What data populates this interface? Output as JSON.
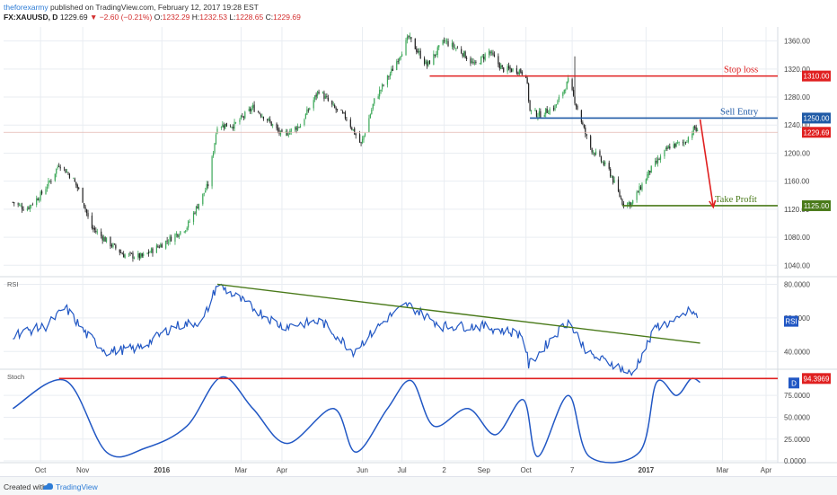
{
  "header": {
    "author": "theforexarmy",
    "published": " published on TradingView.com, February 12, 2017 19:28 EST",
    "symbol": "FX:XAUUSD, D",
    "last": "1229.69",
    "change": "▼ −2.60 (−0.21%)",
    "o_label": "O:",
    "o": "1232.29",
    "h_label": "H:",
    "h": "1232.53",
    "l_label": "L:",
    "l": "1228.65",
    "c_label": "C:",
    "c": "1229.69"
  },
  "footer": {
    "created": "Created with",
    "brand": "TradingView",
    "icon": "tradingview-logo-icon"
  },
  "colors": {
    "up": "#3aa757",
    "down": "#222222",
    "red": "#e02020",
    "blue": "#1f5aa6",
    "green": "#4a7a1a",
    "rsi": "#2157c4",
    "grid": "#e9edf2",
    "current": "#e3b7b0"
  },
  "chart_data": [
    {
      "type": "candlestick",
      "price_axis_ticks": [
        1040,
        1080,
        1120,
        1160,
        1200,
        1240,
        1280,
        1320,
        1360
      ],
      "ylim": [
        1025,
        1380
      ],
      "time_labels": [
        "Oct",
        "Nov",
        "2016",
        "Mar",
        "Apr",
        "Jun",
        "Jul",
        "2",
        "Sep",
        "Oct",
        "7",
        "2017",
        "Mar",
        "Apr"
      ],
      "bold_time_labels": [
        "2016",
        "2017"
      ],
      "current_price": {
        "value": 1229.69,
        "label": "1229.69"
      },
      "trade_levels": [
        {
          "name": "Stop loss",
          "value": 1310,
          "label": "1310.00",
          "color": "#e02020"
        },
        {
          "name": "Sell Entry",
          "value": 1250,
          "label": "1250.00",
          "color": "#1f5aa6"
        },
        {
          "name": "Take Profit",
          "value": 1125,
          "label": "1125.00",
          "color": "#4a7a1a"
        }
      ],
      "close_path": [
        [
          "2015-09-10",
          1130
        ],
        [
          "2015-09-20",
          1120
        ],
        [
          "2015-10-01",
          1140
        ],
        [
          "2015-10-10",
          1165
        ],
        [
          "2015-10-15",
          1185
        ],
        [
          "2015-10-25",
          1165
        ],
        [
          "2015-11-01",
          1140
        ],
        [
          "2015-11-08",
          1095
        ],
        [
          "2015-11-20",
          1075
        ],
        [
          "2015-12-03",
          1055
        ],
        [
          "2015-12-17",
          1052
        ],
        [
          "2016-01-05",
          1075
        ],
        [
          "2016-01-20",
          1095
        ],
        [
          "2016-02-05",
          1155
        ],
        [
          "2016-02-12",
          1240
        ],
        [
          "2016-02-25",
          1240
        ],
        [
          "2016-03-10",
          1265
        ],
        [
          "2016-03-20",
          1250
        ],
        [
          "2016-04-01",
          1225
        ],
        [
          "2016-04-15",
          1240
        ],
        [
          "2016-04-29",
          1290
        ],
        [
          "2016-05-10",
          1265
        ],
        [
          "2016-05-20",
          1250
        ],
        [
          "2016-05-31",
          1212
        ],
        [
          "2016-06-10",
          1275
        ],
        [
          "2016-06-24",
          1320
        ],
        [
          "2016-07-06",
          1365
        ],
        [
          "2016-07-20",
          1325
        ],
        [
          "2016-08-02",
          1360
        ],
        [
          "2016-08-15",
          1345
        ],
        [
          "2016-08-25",
          1325
        ],
        [
          "2016-09-05",
          1345
        ],
        [
          "2016-09-15",
          1320
        ],
        [
          "2016-09-28",
          1318
        ],
        [
          "2016-10-03",
          1312
        ],
        [
          "2016-10-06",
          1260
        ],
        [
          "2016-10-13",
          1255
        ],
        [
          "2016-10-25",
          1266
        ],
        [
          "2016-11-04",
          1302
        ],
        [
          "2016-11-09",
          1275
        ],
        [
          "2016-11-20",
          1210
        ],
        [
          "2016-12-05",
          1175
        ],
        [
          "2016-12-15",
          1130
        ],
        [
          "2016-12-22",
          1128
        ],
        [
          "2017-01-05",
          1175
        ],
        [
          "2017-01-20",
          1210
        ],
        [
          "2017-01-31",
          1215
        ],
        [
          "2017-02-08",
          1236
        ],
        [
          "2017-02-10",
          1229.69
        ]
      ],
      "annotations": [
        {
          "type": "arrow",
          "from": [
            "2017-02-12",
            1248
          ],
          "to": [
            "2017-02-22",
            1123
          ],
          "color": "#e02020"
        }
      ]
    },
    {
      "type": "line",
      "name": "RSI",
      "ylim": [
        30,
        84
      ],
      "axis_ticks": [
        40,
        60,
        80
      ],
      "axis_labels": [
        "40.0000",
        "60.0000",
        "80.0000"
      ],
      "path": [
        [
          "2015-09-10",
          50
        ],
        [
          "2015-10-05",
          55
        ],
        [
          "2015-10-20",
          66
        ],
        [
          "2015-11-05",
          50
        ],
        [
          "2015-11-20",
          40
        ],
        [
          "2015-12-15",
          42
        ],
        [
          "2016-01-10",
          55
        ],
        [
          "2016-02-01",
          58
        ],
        [
          "2016-02-12",
          80
        ],
        [
          "2016-03-10",
          66
        ],
        [
          "2016-04-01",
          55
        ],
        [
          "2016-05-01",
          58
        ],
        [
          "2016-05-25",
          40
        ],
        [
          "2016-06-20",
          60
        ],
        [
          "2016-07-05",
          68
        ],
        [
          "2016-08-01",
          55
        ],
        [
          "2016-09-01",
          55
        ],
        [
          "2016-10-01",
          50
        ],
        [
          "2016-10-05",
          32
        ],
        [
          "2016-10-25",
          50
        ],
        [
          "2016-11-04",
          58
        ],
        [
          "2016-11-20",
          38
        ],
        [
          "2016-12-10",
          32
        ],
        [
          "2016-12-22",
          26
        ],
        [
          "2017-01-10",
          55
        ],
        [
          "2017-01-25",
          58
        ],
        [
          "2017-02-05",
          65
        ],
        [
          "2017-02-10",
          60
        ]
      ],
      "trendline": {
        "from": [
          "2016-02-12",
          80
        ],
        "to": [
          "2017-02-12",
          45
        ]
      }
    },
    {
      "type": "line",
      "name": "Stoch",
      "ylim": [
        -2,
        104
      ],
      "axis_ticks": [
        0,
        25,
        50,
        75
      ],
      "axis_labels": [
        "0.0000",
        "25.0000",
        "50.0000",
        "75.0000"
      ],
      "current": {
        "label": "94.3969",
        "series": "D"
      },
      "resistance": 94.3969,
      "path": [
        [
          "2015-09-10",
          60
        ],
        [
          "2015-10-20",
          92
        ],
        [
          "2015-11-20",
          10
        ],
        [
          "2015-12-20",
          15
        ],
        [
          "2016-01-20",
          40
        ],
        [
          "2016-02-15",
          96
        ],
        [
          "2016-03-10",
          60
        ],
        [
          "2016-04-05",
          20
        ],
        [
          "2016-05-10",
          60
        ],
        [
          "2016-05-27",
          10
        ],
        [
          "2016-06-20",
          60
        ],
        [
          "2016-07-08",
          92
        ],
        [
          "2016-07-25",
          40
        ],
        [
          "2016-08-20",
          60
        ],
        [
          "2016-09-10",
          30
        ],
        [
          "2016-10-01",
          70
        ],
        [
          "2016-10-12",
          5
        ],
        [
          "2016-11-04",
          75
        ],
        [
          "2016-11-20",
          5
        ],
        [
          "2016-12-28",
          10
        ],
        [
          "2017-01-10",
          90
        ],
        [
          "2017-01-25",
          75
        ],
        [
          "2017-02-05",
          94
        ],
        [
          "2017-02-12",
          90
        ]
      ]
    }
  ]
}
